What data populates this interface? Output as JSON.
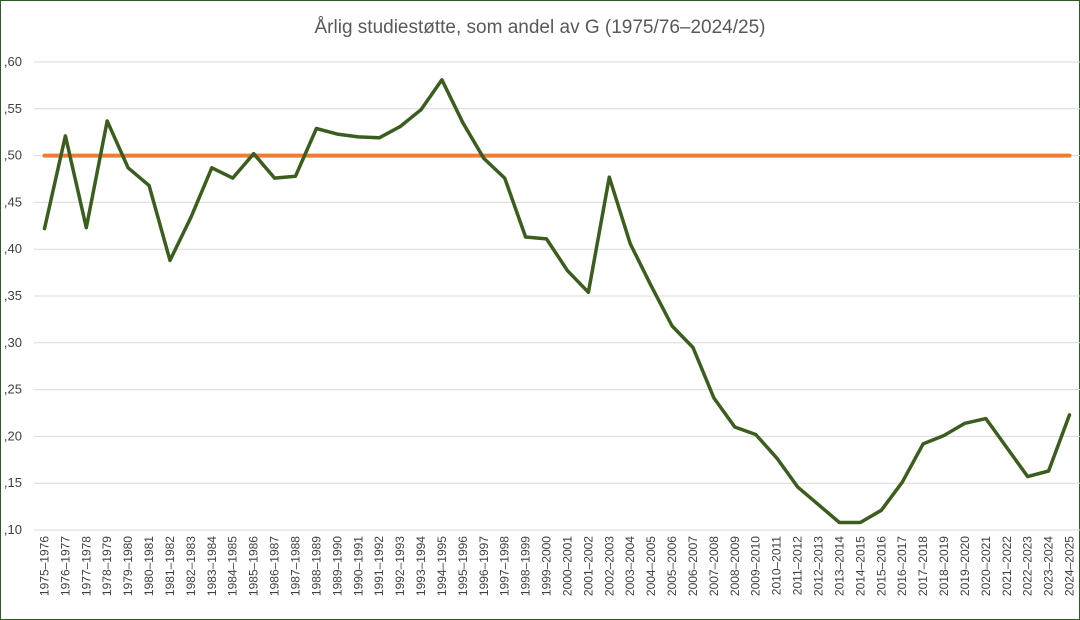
{
  "chart_data": {
    "type": "line",
    "title": "Årlig studiestøtte, som andel av G (1975/76–2024/25)",
    "xlabel": "",
    "ylabel": "",
    "ylim": [
      0.1,
      0.6
    ],
    "yticks": [
      ",10",
      ",15",
      ",20",
      ",25",
      ",30",
      ",35",
      ",40",
      ",45",
      ",50",
      ",55",
      ",60"
    ],
    "grid": true,
    "colors": {
      "series": "#3b5e1f",
      "reference": "#ed7d31",
      "grid": "#d9d9d9",
      "frame": "#2f5a1f"
    },
    "categories": [
      "1975–1976",
      "1976–1977",
      "1977–1978",
      "1978–1979",
      "1979–1980",
      "1980–1981",
      "1981–1982",
      "1982–1983",
      "1983–1984",
      "1984–1985",
      "1985–1986",
      "1986–1987",
      "1987–1988",
      "1988–1989",
      "1989–1990",
      "1990–1991",
      "1991–1992",
      "1992–1993",
      "1993–1994",
      "1994–1995",
      "1995–1996",
      "1996–1997",
      "1997–1998",
      "1998–1999",
      "1999–2000",
      "2000–2001",
      "2001–2002",
      "2002–2003",
      "2003–2004",
      "2004–2005",
      "2005–2006",
      "2006–2007",
      "2007–2008",
      "2008–2009",
      "2009–2010",
      "2010–2011",
      "2011–2012",
      "2012–2013",
      "2013–2014",
      "2014–2015",
      "2015–2016",
      "2016–2017",
      "2017–2018",
      "2018–2019",
      "2019–2020",
      "2020–2021",
      "2021–2022",
      "2022–2023",
      "2023–2024",
      "2024–2025"
    ],
    "series": [
      {
        "values": [
          0.422,
          0.521,
          0.423,
          0.537,
          0.487,
          0.468,
          0.388,
          0.434,
          0.487,
          0.476,
          0.502,
          0.476,
          0.478,
          0.529,
          0.523,
          0.52,
          0.519,
          0.531,
          0.549,
          0.581,
          0.535,
          0.497,
          0.476,
          0.413,
          0.411,
          0.377,
          0.354,
          0.477,
          0.406,
          0.361,
          0.318,
          0.295,
          0.241,
          0.21,
          0.202,
          0.177,
          0.146,
          0.127,
          0.108,
          0.108,
          0.121,
          0.151,
          0.192,
          0.201,
          0.214,
          0.219,
          0.188,
          0.157,
          0.163,
          0.223
        ]
      },
      {
        "values": [
          0.5,
          0.5,
          0.5,
          0.5,
          0.5,
          0.5,
          0.5,
          0.5,
          0.5,
          0.5,
          0.5,
          0.5,
          0.5,
          0.5,
          0.5,
          0.5,
          0.5,
          0.5,
          0.5,
          0.5,
          0.5,
          0.5,
          0.5,
          0.5,
          0.5,
          0.5,
          0.5,
          0.5,
          0.5,
          0.5,
          0.5,
          0.5,
          0.5,
          0.5,
          0.5,
          0.5,
          0.5,
          0.5,
          0.5,
          0.5,
          0.5,
          0.5,
          0.5,
          0.5,
          0.5,
          0.5,
          0.5,
          0.5,
          0.5,
          0.5
        ]
      }
    ]
  }
}
